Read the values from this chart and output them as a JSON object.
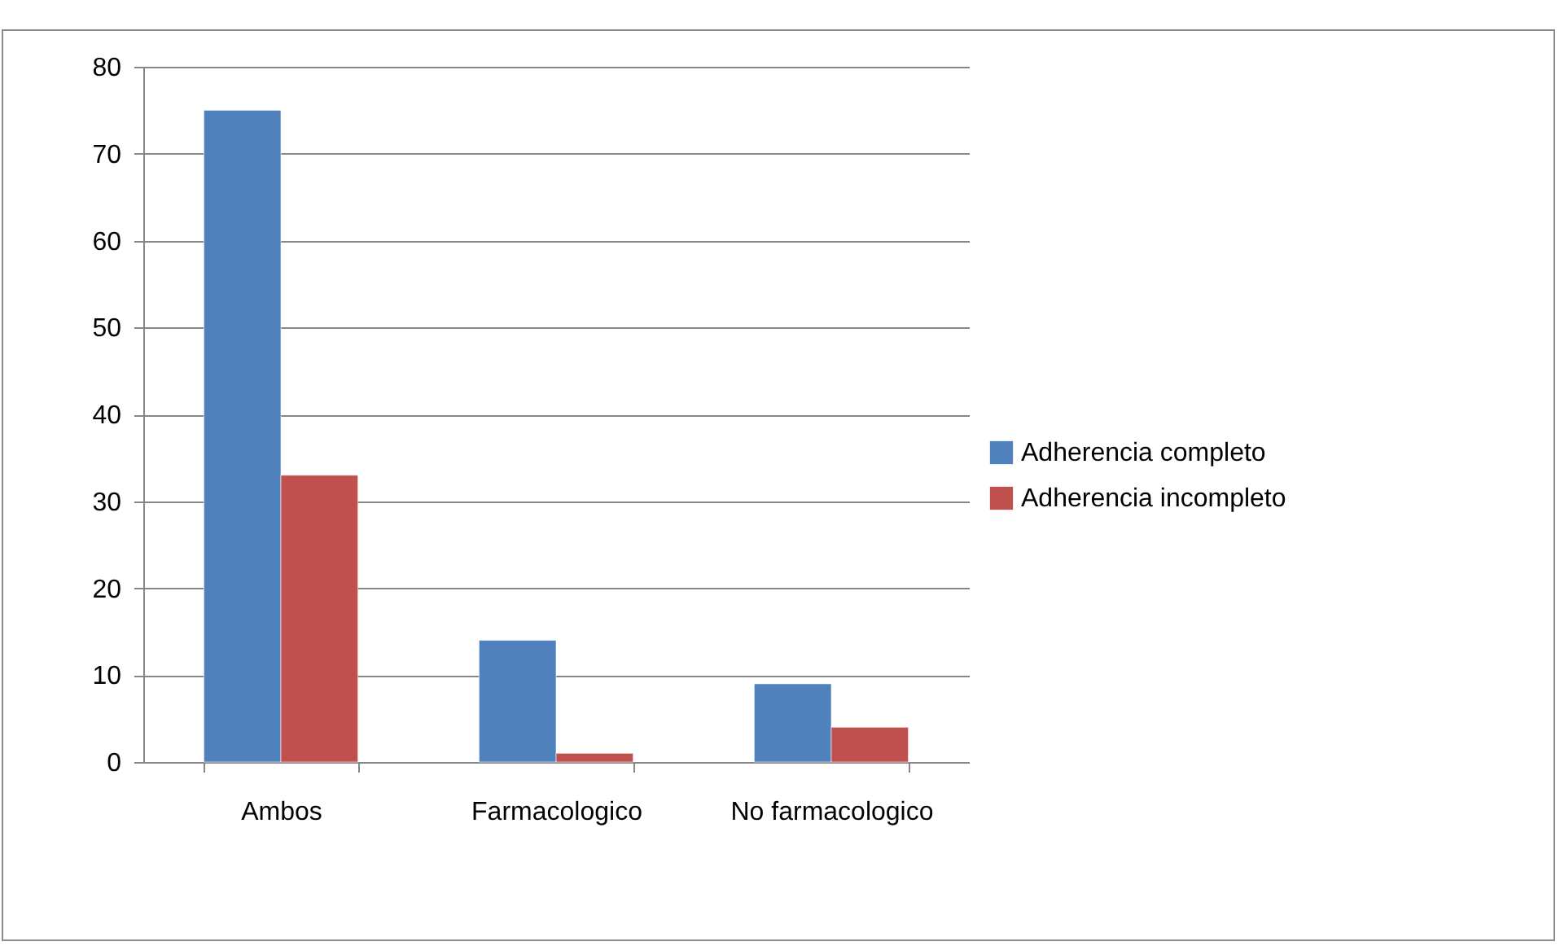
{
  "chart_data": {
    "type": "bar",
    "categories": [
      "Ambos",
      "Farmacologico",
      "No farmacologico"
    ],
    "series": [
      {
        "name": "Adherencia completo",
        "color": "#4f81bd",
        "values": [
          75,
          14,
          9
        ]
      },
      {
        "name": "Adherencia incompleto",
        "color": "#c0504d",
        "values": [
          33,
          1,
          4
        ]
      }
    ],
    "ylim": [
      0,
      80
    ],
    "yticks": [
      0,
      10,
      20,
      30,
      40,
      50,
      60,
      70,
      80
    ],
    "grid": "y",
    "legend": "right"
  }
}
